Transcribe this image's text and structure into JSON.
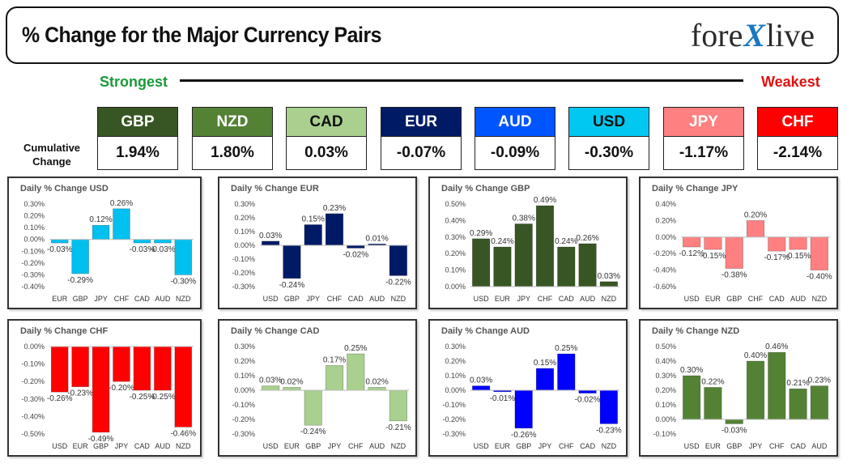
{
  "header": {
    "title": "% Change for the Major Currency Pairs",
    "logo_left": "fore",
    "logo_mark": "X",
    "logo_right": "live"
  },
  "scale": {
    "strongest": "Strongest",
    "weakest": "Weakest"
  },
  "cumulative": {
    "label_line1": "Cumulative",
    "label_line2": "Change",
    "items": [
      {
        "code": "GBP",
        "value": "1.94%",
        "bg": "#375623",
        "fg": "#ffffff"
      },
      {
        "code": "NZD",
        "value": "1.80%",
        "bg": "#548235",
        "fg": "#ffffff"
      },
      {
        "code": "CAD",
        "value": "0.03%",
        "bg": "#a9d08e",
        "fg": "#111111"
      },
      {
        "code": "EUR",
        "value": "-0.07%",
        "bg": "#001a66",
        "fg": "#ffffff"
      },
      {
        "code": "AUD",
        "value": "-0.09%",
        "bg": "#0055ff",
        "fg": "#ffffff"
      },
      {
        "code": "USD",
        "value": "-0.30%",
        "bg": "#00c8f0",
        "fg": "#111111"
      },
      {
        "code": "JPY",
        "value": "-1.17%",
        "bg": "#ff8080",
        "fg": "#ffffff"
      },
      {
        "code": "CHF",
        "value": "-2.14%",
        "bg": "#ff0000",
        "fg": "#ffffff"
      }
    ]
  },
  "chart_data": [
    {
      "type": "bar",
      "title": "Daily % Change USD",
      "color": "#00c0f0",
      "categories": [
        "EUR",
        "GBP",
        "JPY",
        "CHF",
        "CAD",
        "AUD",
        "NZD"
      ],
      "values": [
        -0.03,
        -0.29,
        0.12,
        0.26,
        -0.03,
        -0.03,
        -0.3
      ],
      "labels": [
        "-0.03%",
        "-0.29%",
        "0.12%",
        "0.26%",
        "-0.03%",
        "-0.03%",
        "-0.30%"
      ],
      "yticks": [
        "0.30%",
        "0.20%",
        "0.10%",
        "0.00%",
        "-0.10%",
        "-0.20%",
        "-0.30%",
        "-0.40%"
      ],
      "ylim": [
        -0.4,
        0.3
      ]
    },
    {
      "type": "bar",
      "title": "Daily % Change EUR",
      "color": "#001a66",
      "categories": [
        "USD",
        "GBP",
        "JPY",
        "CHF",
        "CAD",
        "AUD",
        "NZD"
      ],
      "values": [
        0.03,
        -0.24,
        0.15,
        0.23,
        -0.02,
        0.01,
        -0.22
      ],
      "labels": [
        "0.03%",
        "-0.24%",
        "0.15%",
        "0.23%",
        "-0.02%",
        "0.01%",
        "-0.22%"
      ],
      "yticks": [
        "0.30%",
        "0.20%",
        "0.10%",
        "0.00%",
        "-0.10%",
        "-0.20%",
        "-0.30%"
      ],
      "ylim": [
        -0.3,
        0.3
      ]
    },
    {
      "type": "bar",
      "title": "Daily % Change GBP",
      "color": "#375623",
      "categories": [
        "USD",
        "EUR",
        "JPY",
        "CHF",
        "CAD",
        "AUD",
        "NZD"
      ],
      "values": [
        0.29,
        0.24,
        0.38,
        0.49,
        0.24,
        0.26,
        0.03
      ],
      "labels": [
        "0.29%",
        "0.24%",
        "0.38%",
        "0.49%",
        "0.24%",
        "0.26%",
        "0.03%"
      ],
      "yticks": [
        "0.50%",
        "0.40%",
        "0.30%",
        "0.20%",
        "0.10%",
        "0.00%"
      ],
      "ylim": [
        0,
        0.5
      ]
    },
    {
      "type": "bar",
      "title": "Daily % Change JPY",
      "color": "#ff8080",
      "categories": [
        "USD",
        "EUR",
        "GBP",
        "CHF",
        "CAD",
        "AUD",
        "NZD"
      ],
      "values": [
        -0.12,
        -0.15,
        -0.38,
        0.2,
        -0.17,
        -0.15,
        -0.4
      ],
      "labels": [
        "-0.12%",
        "-0.15%",
        "-0.38%",
        "0.20%",
        "-0.17%",
        "-0.15%",
        "-0.40%"
      ],
      "yticks": [
        "0.40%",
        "0.20%",
        "0.00%",
        "-0.20%",
        "-0.40%",
        "-0.60%"
      ],
      "ylim": [
        -0.6,
        0.4
      ]
    },
    {
      "type": "bar",
      "title": "Daily % Change CHF",
      "color": "#ff0000",
      "categories": [
        "USD",
        "EUR",
        "GBP",
        "JPY",
        "CAD",
        "AUD",
        "NZD"
      ],
      "values": [
        -0.26,
        -0.23,
        -0.49,
        -0.2,
        -0.25,
        -0.25,
        -0.46
      ],
      "labels": [
        "-0.26%",
        "-0.23%",
        "-0.49%",
        "-0.20%",
        "-0.25%",
        "-0.25%",
        "-0.46%"
      ],
      "yticks": [
        "0.00%",
        "-0.10%",
        "-0.20%",
        "-0.30%",
        "-0.40%",
        "-0.50%"
      ],
      "ylim": [
        -0.5,
        0
      ]
    },
    {
      "type": "bar",
      "title": "Daily % Change CAD",
      "color": "#a9d08e",
      "categories": [
        "USD",
        "EUR",
        "GBP",
        "JPY",
        "CHF",
        "AUD",
        "NZD"
      ],
      "values": [
        0.03,
        0.02,
        -0.24,
        0.17,
        0.25,
        0.02,
        -0.21
      ],
      "labels": [
        "0.03%",
        "0.02%",
        "-0.24%",
        "0.17%",
        "0.25%",
        "0.02%",
        "-0.21%"
      ],
      "yticks": [
        "0.30%",
        "0.20%",
        "0.10%",
        "0.00%",
        "-0.10%",
        "-0.20%",
        "-0.30%"
      ],
      "ylim": [
        -0.3,
        0.3
      ]
    },
    {
      "type": "bar",
      "title": "Daily % Change AUD",
      "color": "#0000ff",
      "categories": [
        "USD",
        "EUR",
        "GBP",
        "JPY",
        "CHF",
        "CAD",
        "NZD"
      ],
      "values": [
        0.03,
        -0.01,
        -0.26,
        0.15,
        0.25,
        -0.02,
        -0.23
      ],
      "labels": [
        "0.03%",
        "-0.01%",
        "-0.26%",
        "0.15%",
        "0.25%",
        "-0.02%",
        "-0.23%"
      ],
      "yticks": [
        "0.30%",
        "0.20%",
        "0.10%",
        "0.00%",
        "-0.10%",
        "-0.20%",
        "-0.30%"
      ],
      "ylim": [
        -0.3,
        0.3
      ]
    },
    {
      "type": "bar",
      "title": "Daily % Change NZD",
      "color": "#548235",
      "categories": [
        "USD",
        "EUR",
        "GBP",
        "JPY",
        "CHF",
        "CAD",
        "AUD"
      ],
      "values": [
        0.3,
        0.22,
        -0.03,
        0.4,
        0.46,
        0.21,
        0.23
      ],
      "labels": [
        "0.30%",
        "0.22%",
        "-0.03%",
        "0.40%",
        "0.46%",
        "0.21%",
        "0.23%"
      ],
      "yticks": [
        "0.50%",
        "0.40%",
        "0.30%",
        "0.20%",
        "0.10%",
        "0.00%",
        "-0.10%"
      ],
      "ylim": [
        -0.1,
        0.5
      ]
    }
  ]
}
